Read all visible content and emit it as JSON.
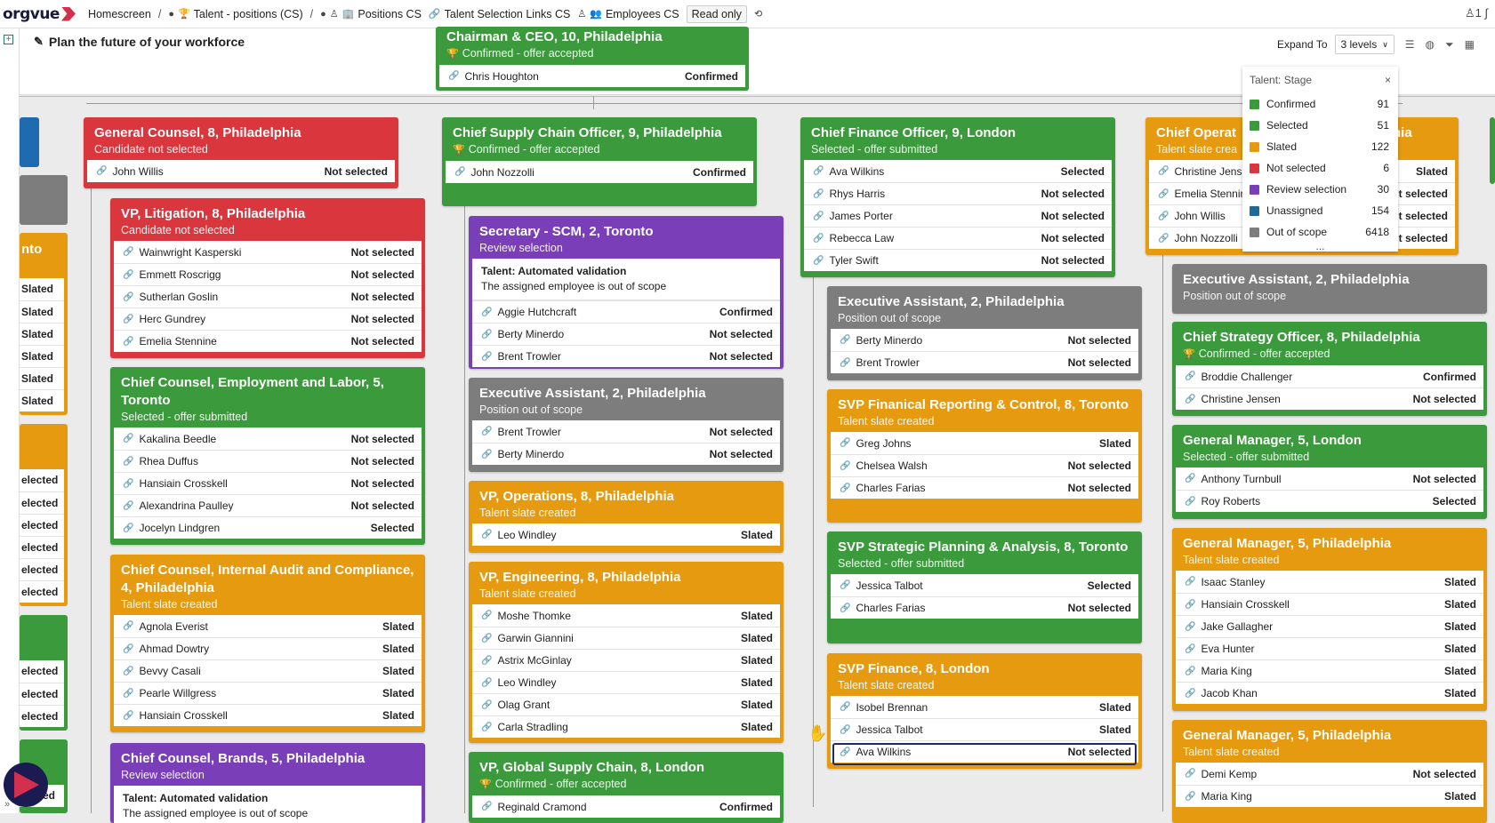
{
  "app": {
    "logo_text": "orgvue"
  },
  "breadcrumb": [
    {
      "label": "Homescreen"
    },
    {
      "label": "Talent - positions (CS)"
    },
    {
      "label": "Positions CS"
    },
    {
      "label": "Talent Selection Links CS"
    },
    {
      "label": "Employees CS"
    }
  ],
  "readonly_label": "Read only",
  "page_title": "Plan the future of your workforce",
  "toolbar": {
    "expand_label": "Expand To",
    "expand_value": "3 levels"
  },
  "legend": {
    "title": "Talent: Stage",
    "close": "×",
    "items": [
      {
        "label": "Confirmed",
        "count": "91",
        "color": "#3a9a3c"
      },
      {
        "label": "Selected",
        "count": "51",
        "color": "#3a9a3c"
      },
      {
        "label": "Slated",
        "count": "122",
        "color": "#e59a10"
      },
      {
        "label": "Not selected",
        "count": "6",
        "color": "#d9363e"
      },
      {
        "label": "Review selection",
        "count": "30",
        "color": "#7a3fb8"
      },
      {
        "label": "Unassigned",
        "count": "154",
        "color": "#1f6b9a"
      },
      {
        "label": "Out of scope",
        "count": "6418",
        "color": "#7d7d7d"
      }
    ],
    "more": "..."
  },
  "cards": {
    "ceo": {
      "title": "Chairman & CEO, 10, Philadelphia",
      "sub": "Confirmed - offer accepted",
      "rows": [
        {
          "name": "Chris Houghton",
          "status": "Confirmed"
        }
      ]
    },
    "gc": {
      "title": "General Counsel, 8, Philadelphia",
      "sub": "Candidate not selected",
      "rows": [
        {
          "name": "John Willis",
          "status": "Not selected"
        }
      ]
    },
    "vplit": {
      "title": "VP, Litigation, 8, Philadelphia",
      "sub": "Candidate not selected",
      "rows": [
        {
          "name": "Wainwright Kasperski",
          "status": "Not selected"
        },
        {
          "name": "Emmett Roscrigg",
          "status": "Not selected"
        },
        {
          "name": "Sutherlan Goslin",
          "status": "Not selected"
        },
        {
          "name": "Herc Gundrey",
          "status": "Not selected"
        },
        {
          "name": "Emelia Stennine",
          "status": "Not selected"
        }
      ]
    },
    "ccel": {
      "title": "Chief Counsel, Employment and Labor, 5, Toronto",
      "sub": "Selected - offer submitted",
      "rows": [
        {
          "name": "Kakalina Beedle",
          "status": "Not selected"
        },
        {
          "name": "Rhea Duffus",
          "status": "Not selected"
        },
        {
          "name": "Hansiain Crosskell",
          "status": "Not selected"
        },
        {
          "name": "Alexandrina Paulley",
          "status": "Not selected"
        },
        {
          "name": "Jocelyn Lindgren",
          "status": "Selected"
        }
      ]
    },
    "ccia": {
      "title": "Chief Counsel, Internal Audit and Compliance, 4, Philadelphia",
      "sub": "Talent slate created",
      "rows": [
        {
          "name": "Agnola Everist",
          "status": "Slated"
        },
        {
          "name": "Ahmad Dowtry",
          "status": "Slated"
        },
        {
          "name": "Bevvy Casali",
          "status": "Slated"
        },
        {
          "name": "Pearle Willgress",
          "status": "Slated"
        },
        {
          "name": "Hansiain Crosskell",
          "status": "Slated"
        }
      ]
    },
    "ccb": {
      "title": "Chief Counsel, Brands, 5, Philadelphia",
      "sub": "Review selection",
      "note_title": "Talent: Automated validation",
      "note_text": "The assigned employee is out of scope"
    },
    "cscso": {
      "title": "Chief Supply Chain Officer, 9, Philadelphia",
      "sub": "Confirmed - offer accepted",
      "rows": [
        {
          "name": "John Nozzolli",
          "status": "Confirmed"
        }
      ]
    },
    "secscm": {
      "title": "Secretary - SCM, 2, Toronto",
      "sub": "Review selection",
      "note_title": "Talent: Automated validation",
      "note_text": "The assigned employee is out of scope",
      "rows": [
        {
          "name": "Aggie Hutchcraft",
          "status": "Confirmed"
        },
        {
          "name": "Berty Minerdo",
          "status": "Not selected"
        },
        {
          "name": "Brent Trowler",
          "status": "Not selected"
        }
      ]
    },
    "ea1": {
      "title": "Executive Assistant, 2, Philadelphia",
      "sub": "Position out of scope",
      "rows": [
        {
          "name": "Brent Trowler",
          "status": "Not selected"
        },
        {
          "name": "Berty Minerdo",
          "status": "Not selected"
        }
      ]
    },
    "vpops": {
      "title": "VP, Operations, 8, Philadelphia",
      "sub": "Talent slate created",
      "rows": [
        {
          "name": "Leo Windley",
          "status": "Slated"
        }
      ]
    },
    "vpeng": {
      "title": "VP, Engineering, 8, Philadelphia",
      "sub": "Talent slate created",
      "rows": [
        {
          "name": "Moshe Thomke",
          "status": "Slated"
        },
        {
          "name": "Garwin Giannini",
          "status": "Slated"
        },
        {
          "name": "Astrix McGinlay",
          "status": "Slated"
        },
        {
          "name": "Leo Windley",
          "status": "Slated"
        },
        {
          "name": "Olag Grant",
          "status": "Slated"
        },
        {
          "name": "Carla Stradling",
          "status": "Slated"
        }
      ]
    },
    "vpgsc": {
      "title": "VP, Global Supply Chain, 8, London",
      "sub": "Confirmed - offer accepted",
      "rows": [
        {
          "name": "Reginald Cramond",
          "status": "Confirmed"
        }
      ]
    },
    "cfo": {
      "title": "Chief Finance Officer, 9, London",
      "sub": "Selected - offer submitted",
      "rows": [
        {
          "name": "Ava Wilkins",
          "status": "Selected"
        },
        {
          "name": "Rhys Harris",
          "status": "Not selected"
        },
        {
          "name": "James Porter",
          "status": "Not selected"
        },
        {
          "name": "Rebecca Law",
          "status": "Not selected"
        },
        {
          "name": "Tyler Swift",
          "status": "Not selected"
        }
      ]
    },
    "ea2": {
      "title": "Executive Assistant, 2, Philadelphia",
      "sub": "Position out of scope",
      "rows": [
        {
          "name": "Berty Minerdo",
          "status": "Not selected"
        },
        {
          "name": "Brent Trowler",
          "status": "Not selected"
        }
      ]
    },
    "svpfr": {
      "title": "SVP Finanical Reporting & Control, 8, Toronto",
      "sub": "Talent slate created",
      "rows": [
        {
          "name": "Greg Johns",
          "status": "Slated"
        },
        {
          "name": "Chelsea Walsh",
          "status": "Not selected"
        },
        {
          "name": "Charles Farias",
          "status": "Not selected"
        }
      ]
    },
    "svpspa": {
      "title": "SVP Strategic Planning & Analysis, 8, Toronto",
      "sub": "Selected - offer submitted",
      "rows": [
        {
          "name": "Jessica Talbot",
          "status": "Selected"
        },
        {
          "name": "Charles Farias",
          "status": "Not selected"
        }
      ]
    },
    "svpf": {
      "title": "SVP Finance, 8, London",
      "sub": "Talent slate created",
      "rows": [
        {
          "name": "Isobel Brennan",
          "status": "Slated"
        },
        {
          "name": "Jessica Talbot",
          "status": "Slated"
        },
        {
          "name": "Ava Wilkins",
          "status": "Not selected"
        }
      ]
    },
    "coo": {
      "title": "Chief Operat",
      "title_tail": "hia",
      "sub": "Talent slate crea",
      "rows": [
        {
          "name": "Christine Jense",
          "status": "Slated"
        },
        {
          "name": "Emelia Stennin",
          "status": "t selected"
        },
        {
          "name": "John Willis",
          "status": "t selected"
        },
        {
          "name": "John Nozzolli",
          "status": "t selected"
        }
      ]
    },
    "ea3": {
      "title": "Executive Assistant, 2, Philadelphia",
      "sub": "Position out of scope"
    },
    "cso": {
      "title": "Chief Strategy Officer, 8, Philadelphia",
      "sub": "Confirmed - offer accepted",
      "rows": [
        {
          "name": "Broddie Challenger",
          "status": "Confirmed"
        },
        {
          "name": "Christine Jensen",
          "status": "Not selected"
        }
      ]
    },
    "gmlon": {
      "title": "General Manager, 5, London",
      "sub": "Selected - offer submitted",
      "rows": [
        {
          "name": "Anthony Turnbull",
          "status": "Not selected"
        },
        {
          "name": "Roy Roberts",
          "status": "Selected"
        }
      ]
    },
    "gmphl1": {
      "title": "General Manager, 5, Philadelphia",
      "sub": "Talent slate created",
      "rows": [
        {
          "name": "Isaac Stanley",
          "status": "Slated"
        },
        {
          "name": "Hansiain Crosskell",
          "status": "Slated"
        },
        {
          "name": "Jake Gallagher",
          "status": "Slated"
        },
        {
          "name": "Eva Hunter",
          "status": "Slated"
        },
        {
          "name": "Maria King",
          "status": "Slated"
        },
        {
          "name": "Jacob Khan",
          "status": "Slated"
        }
      ]
    },
    "gmphl2": {
      "title": "General Manager, 5, Philadelphia",
      "sub": "Talent slate created",
      "rows": [
        {
          "name": "Demi Kemp",
          "status": "Not selected"
        },
        {
          "name": "Maria King",
          "status": "Slated"
        }
      ]
    }
  },
  "left_fragments": {
    "orange1_title": "nto",
    "orange1_rows": [
      "Slated",
      "Slated",
      "Slated",
      "Slated",
      "Slated",
      "Slated"
    ],
    "orange2_rows": [
      "elected",
      "elected",
      "elected",
      "elected",
      "elected",
      "elected"
    ],
    "green1_rows": [
      "elected",
      "elected",
      "elected"
    ],
    "green2_rows": [
      "ted"
    ]
  }
}
